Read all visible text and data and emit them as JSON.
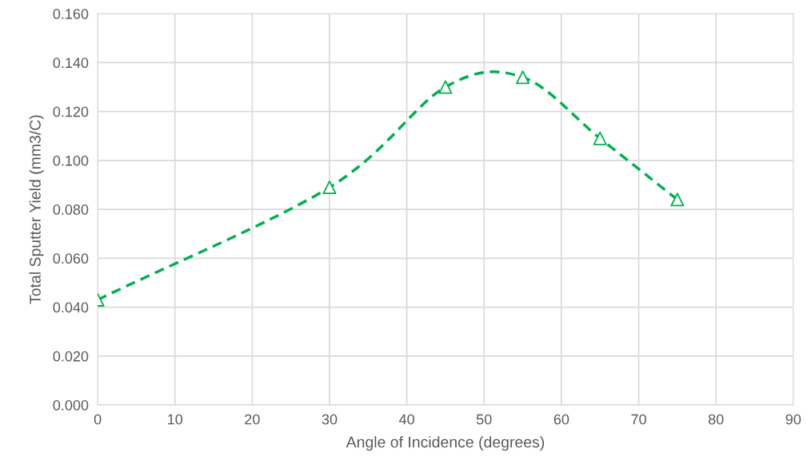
{
  "chart_data": {
    "type": "line",
    "xlabel": "Angle of Incidence (degrees)",
    "ylabel": "Total Sputter Yield (mm3/C)",
    "x": [
      0,
      30,
      45,
      55,
      65,
      75
    ],
    "series": [
      {
        "color": "#00b050",
        "values": [
          0.043,
          0.089,
          0.13,
          0.134,
          0.109,
          0.084
        ]
      }
    ],
    "xlim": [
      0,
      90
    ],
    "xticks": [
      0,
      10,
      20,
      30,
      40,
      50,
      60,
      70,
      80,
      90
    ],
    "ylim": [
      0,
      0.16
    ],
    "yticks": [
      {
        "value": 0,
        "label": "0.000"
      },
      {
        "value": 0.02,
        "label": "0.020"
      },
      {
        "value": 0.04,
        "label": "0.040"
      },
      {
        "value": 0.06,
        "label": "0.060"
      },
      {
        "value": 0.08,
        "label": "0.080"
      },
      {
        "value": 0.1,
        "label": "0.100"
      },
      {
        "value": 0.12,
        "label": "0.120"
      },
      {
        "value": 0.14,
        "label": "0.140"
      },
      {
        "value": 0.16,
        "label": "0.160"
      }
    ],
    "grid": true,
    "marker": "triangle",
    "line_style": "dashed"
  }
}
